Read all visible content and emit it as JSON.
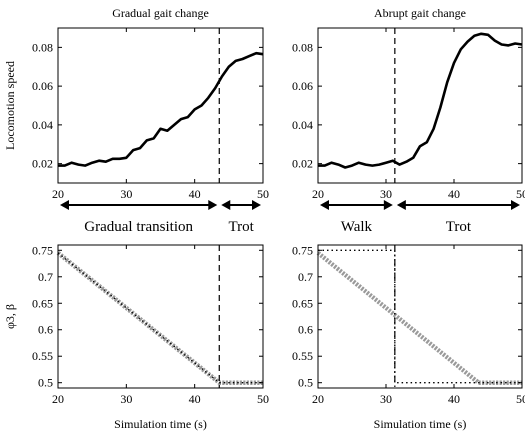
{
  "chart_data": [
    {
      "id": "speed_gradual",
      "type": "line",
      "title": "Gradual gait change",
      "ylabel": "Locomotion speed",
      "xlabel": "",
      "xlim": [
        20,
        50
      ],
      "ylim": [
        0.01,
        0.09
      ],
      "xticks": [
        20,
        30,
        40,
        50
      ],
      "yticks": [
        0.02,
        0.04,
        0.06,
        0.08
      ],
      "ytick_labels": [
        "0.02",
        "0.04",
        "0.06",
        "0.08"
      ],
      "vline": 43.6,
      "series": [
        {
          "style": "solid",
          "color": "#000000",
          "x": [
            20,
            21,
            22,
            23,
            24,
            25,
            26,
            27,
            28,
            29,
            30,
            31,
            32,
            33,
            34,
            35,
            36,
            37,
            38,
            39,
            40,
            41,
            42,
            43,
            44,
            45,
            46,
            47,
            48,
            49,
            50
          ],
          "y": [
            0.019,
            0.019,
            0.0205,
            0.0195,
            0.019,
            0.0205,
            0.0215,
            0.021,
            0.0225,
            0.0225,
            0.023,
            0.027,
            0.028,
            0.032,
            0.033,
            0.038,
            0.037,
            0.04,
            0.043,
            0.044,
            0.048,
            0.05,
            0.054,
            0.059,
            0.065,
            0.07,
            0.073,
            0.074,
            0.0755,
            0.077,
            0.0765
          ]
        }
      ]
    },
    {
      "id": "speed_abrupt",
      "type": "line",
      "title": "Abrupt gait change",
      "ylabel": "",
      "xlabel": "",
      "xlim": [
        20,
        50
      ],
      "ylim": [
        0.01,
        0.09
      ],
      "xticks": [
        20,
        30,
        40,
        50
      ],
      "yticks": [
        0.02,
        0.04,
        0.06,
        0.08
      ],
      "ytick_labels": [
        "0.02",
        "0.04",
        "0.06",
        "0.08"
      ],
      "vline": 31.3,
      "series": [
        {
          "style": "solid",
          "color": "#000000",
          "x": [
            20,
            21,
            22,
            23,
            24,
            25,
            26,
            27,
            28,
            29,
            30,
            31,
            32,
            33,
            34,
            35,
            36,
            37,
            38,
            39,
            40,
            41,
            42,
            43,
            44,
            45,
            46,
            47,
            48,
            49,
            50
          ],
          "y": [
            0.019,
            0.019,
            0.0205,
            0.0195,
            0.018,
            0.019,
            0.0205,
            0.0195,
            0.019,
            0.0195,
            0.0205,
            0.0215,
            0.0195,
            0.021,
            0.023,
            0.029,
            0.031,
            0.038,
            0.049,
            0.062,
            0.072,
            0.079,
            0.083,
            0.086,
            0.087,
            0.0865,
            0.0835,
            0.0815,
            0.081,
            0.082,
            0.0815
          ]
        }
      ]
    },
    {
      "id": "phase_gradual",
      "type": "line",
      "title": "",
      "ylabel": "φ3, β",
      "xlabel": "Simulation time (s)",
      "xlim": [
        20,
        50
      ],
      "ylim": [
        0.49,
        0.76
      ],
      "xticks": [
        20,
        30,
        40,
        50
      ],
      "yticks": [
        0.5,
        0.55,
        0.6,
        0.65,
        0.7,
        0.75
      ],
      "ytick_labels": [
        "0.5",
        "0.55",
        "0.6",
        "0.65",
        "0.7",
        "0.75"
      ],
      "vline": 43.6,
      "series": [
        {
          "style": "gray-marker",
          "color": "#9a9a9a",
          "x": [
            20,
            43.6,
            50
          ],
          "y": [
            0.745,
            0.5,
            0.5
          ]
        },
        {
          "style": "dotted",
          "color": "#000000",
          "x": [
            20,
            43.6,
            50
          ],
          "y": [
            0.745,
            0.5,
            0.5
          ]
        }
      ]
    },
    {
      "id": "phase_abrupt",
      "type": "line",
      "title": "",
      "ylabel": "",
      "xlabel": "Simulation time (s)",
      "xlim": [
        20,
        50
      ],
      "ylim": [
        0.49,
        0.76
      ],
      "xticks": [
        20,
        30,
        40,
        50
      ],
      "yticks": [
        0.5,
        0.55,
        0.6,
        0.65,
        0.7,
        0.75
      ],
      "ytick_labels": [
        "0.5",
        "0.55",
        "0.6",
        "0.65",
        "0.7",
        "0.75"
      ],
      "vline": 31.3,
      "series": [
        {
          "style": "gray-marker",
          "color": "#9a9a9a",
          "x": [
            20,
            43.6,
            50
          ],
          "y": [
            0.745,
            0.5,
            0.5
          ]
        },
        {
          "style": "dotted",
          "color": "#000000",
          "x": [
            20,
            31.3,
            31.3,
            50
          ],
          "y": [
            0.75,
            0.75,
            0.5,
            0.5
          ]
        }
      ]
    }
  ],
  "regions": [
    {
      "id": "gradual_transition",
      "label": "Gradual transition",
      "chart": 0,
      "x_from": 20,
      "x_to": 43.6
    },
    {
      "id": "trot_left",
      "label": "Trot",
      "chart": 0,
      "x_from": 43.6,
      "x_to": 50
    },
    {
      "id": "walk",
      "label": "Walk",
      "chart": 1,
      "x_from": 20,
      "x_to": 31.3
    },
    {
      "id": "trot_right",
      "label": "Trot",
      "chart": 1,
      "x_from": 31.3,
      "x_to": 50
    }
  ]
}
